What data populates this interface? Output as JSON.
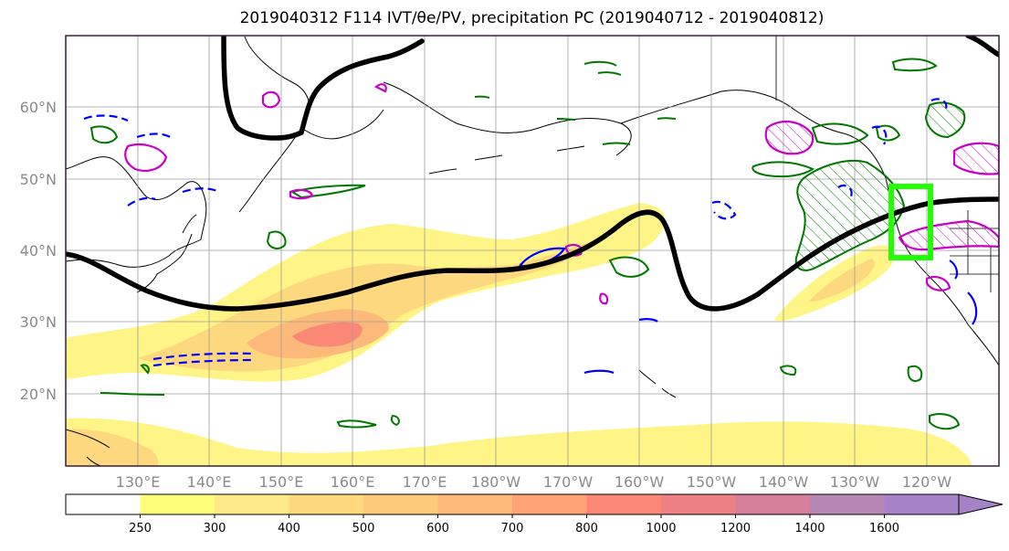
{
  "title": "2019040312 F114 IVT/θe/PV, precipitation PC (2019040712 - 2019040812)",
  "lat_labels": [
    "60°N",
    "50°N",
    "40°N",
    "30°N",
    "20°N"
  ],
  "lon_labels": [
    "130°E",
    "140°E",
    "150°E",
    "160°E",
    "170°E",
    "180°W",
    "170°W",
    "160°W",
    "150°W",
    "140°W",
    "130°W",
    "120°W"
  ],
  "colorbar": {
    "levels": [
      "250",
      "300",
      "400",
      "500",
      "600",
      "700",
      "800",
      "1000",
      "1200",
      "1400",
      "1600"
    ],
    "colors": [
      "#ffffff",
      "#fffe7a",
      "#fde98a",
      "#fdd87f",
      "#fdca7c",
      "#fdb97a",
      "#fda374",
      "#fb8877",
      "#ec8183",
      "#d57f99",
      "#b886b5",
      "#a682c6"
    ]
  },
  "colors": {
    "ivt_low": "#fff587",
    "ivt_mid": "#fdd37a",
    "ivt_high": "#fb9478",
    "theta_e": "#000000",
    "pv_positive": "#c800c8",
    "pv_negative": "#0000ff",
    "precip_pc": "#007800",
    "target_box": "#22ff00",
    "coastline": "#000000",
    "grid": "#9c9c9c"
  },
  "target_box_region": {
    "lon_range": [
      "130°W",
      "120°W"
    ],
    "lat_range": [
      "39°N",
      "49°N"
    ]
  }
}
